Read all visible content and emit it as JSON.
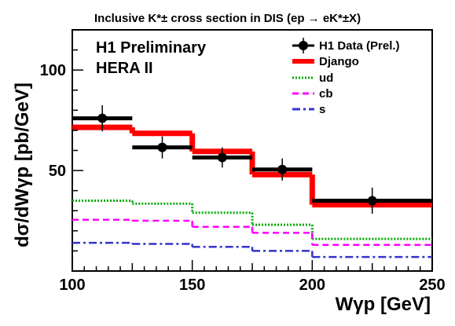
{
  "chart_data": {
    "type": "line",
    "title": "Inclusive K*± cross section in DIS (ep → eK*±X)",
    "xlabel": "Wγp [GeV]",
    "ylabel": "dσ/dWγp [pb/GeV]",
    "xlim": [
      100,
      250
    ],
    "ylim": [
      0,
      120
    ],
    "x_ticks": [
      100,
      150,
      200,
      250
    ],
    "y_ticks": [
      50,
      100
    ],
    "bin_edges": [
      100,
      125,
      150,
      175,
      200,
      250
    ],
    "annotations": [
      "H1 Preliminary",
      "HERA II"
    ],
    "legend_position": "top-right",
    "series": [
      {
        "name": "H1 Data (Prel.)",
        "style": "points-with-errors",
        "color": "#000000",
        "x": [
          112.5,
          137.5,
          162.5,
          187.5,
          225
        ],
        "values": [
          76,
          61.5,
          56.5,
          50.5,
          35
        ],
        "errors": [
          6.5,
          5.5,
          5,
          5.5,
          6.5
        ]
      },
      {
        "name": "Django",
        "style": "step",
        "color": "#ff0000",
        "values": [
          71.5,
          68.5,
          59.5,
          48,
          33
        ]
      },
      {
        "name": "ud",
        "style": "step-dotted",
        "color": "#00aa00",
        "values": [
          35,
          33.5,
          29,
          23,
          16
        ]
      },
      {
        "name": "cb",
        "style": "step-dashed",
        "color": "#ff00ff",
        "values": [
          25.5,
          25,
          22,
          19,
          13
        ]
      },
      {
        "name": "s",
        "style": "step-dashdot",
        "color": "#3333cc",
        "values": [
          14,
          13.5,
          12,
          10,
          7
        ]
      }
    ]
  }
}
